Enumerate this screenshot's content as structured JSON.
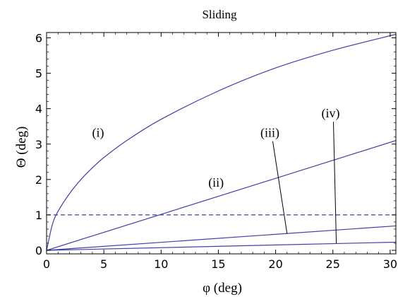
{
  "chart_data": {
    "type": "line",
    "title": "Sliding",
    "xlabel": "φ (deg)",
    "ylabel": "Θ (deg)",
    "xlim": [
      0,
      30.5
    ],
    "ylim": [
      -0.1,
      6.15
    ],
    "xticks": [
      0,
      5,
      10,
      15,
      20,
      25,
      30
    ],
    "yticks": [
      0,
      1,
      2,
      3,
      4,
      5,
      6
    ],
    "grid": false,
    "series_color": "#3f3fa8",
    "series": [
      {
        "name": "(i)",
        "x": [
          0,
          0.5,
          1,
          2,
          3,
          4,
          5,
          7,
          10,
          15,
          20,
          25,
          30.5
        ],
        "values": [
          0,
          0.72,
          1.1,
          1.6,
          2.0,
          2.33,
          2.62,
          3.1,
          3.7,
          4.5,
          5.15,
          5.65,
          6.1
        ]
      },
      {
        "name": "(ii)",
        "x": [
          0,
          30.5
        ],
        "values": [
          0,
          3.1
        ]
      },
      {
        "name": "(iii)",
        "x": [
          0,
          30.5
        ],
        "values": [
          0,
          0.69
        ]
      },
      {
        "name": "(iv)",
        "x": [
          0,
          30.5
        ],
        "values": [
          0,
          0.23
        ]
      },
      {
        "name": "",
        "style": "dashed",
        "x": [
          0,
          30.5
        ],
        "values": [
          1,
          1
        ]
      }
    ],
    "annotations": [
      {
        "text": "(i)",
        "x": 4.5,
        "y": 3.2
      },
      {
        "text": "(ii)",
        "x": 14.8,
        "y": 1.8
      },
      {
        "text": "(iii)",
        "x": 19.5,
        "y": 3.2,
        "pointer_to_x": 21.0,
        "pointer_to_y": 0.47
      },
      {
        "text": "(iv)",
        "x": 24.8,
        "y": 3.75,
        "pointer_to_x": 25.3,
        "pointer_to_y": 0.2
      }
    ]
  }
}
